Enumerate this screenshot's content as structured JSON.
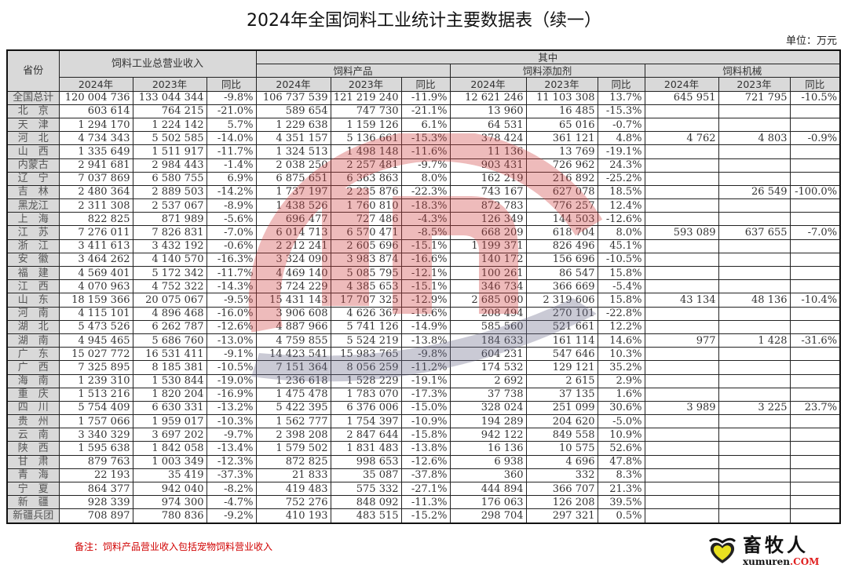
{
  "title": "2024年全国饲料工业统计主要数据表（续一）",
  "unit": "单位：万元",
  "headers": {
    "province": "省份",
    "total": "饲料工业总营业收入",
    "of_which": "其中",
    "feed_products": "饲料产品",
    "feed_additives": "饲料添加剂",
    "feed_machinery": "饲料机械",
    "y2024": "2024年",
    "y2023": "2023年",
    "yoy": "同比"
  },
  "rows": [
    [
      "全国总计",
      "120 004 736",
      "133 044 344",
      "-9.8%",
      "106 737 539",
      "121 219 240",
      "-11.9%",
      "12 621 246",
      "11 103 308",
      "13.7%",
      "645 951",
      "721 795",
      "-10.5%"
    ],
    [
      "北　京",
      "603 614",
      "764 215",
      "-21.0%",
      "589 654",
      "747 730",
      "-21.1%",
      "13 960",
      "16 485",
      "-15.3%",
      "",
      "",
      ""
    ],
    [
      "天　津",
      "1 294 170",
      "1 224 142",
      "5.7%",
      "1 229 638",
      "1 159 126",
      "6.1%",
      "64 531",
      "65 016",
      "-0.7%",
      "",
      "",
      ""
    ],
    [
      "河　北",
      "4 734 343",
      "5 502 585",
      "-14.0%",
      "4 351 157",
      "5 136 661",
      "-15.3%",
      "378 424",
      "361 121",
      "4.8%",
      "4 762",
      "4 803",
      "-0.9%"
    ],
    [
      "山　西",
      "1 335 649",
      "1 511 917",
      "-11.7%",
      "1 324 513",
      "1 498 148",
      "-11.6%",
      "11 136",
      "13 769",
      "-19.1%",
      "",
      "",
      ""
    ],
    [
      "内蒙古",
      "2 941 681",
      "2 984 443",
      "-1.4%",
      "2 038 250",
      "2 257 481",
      "-9.7%",
      "903 431",
      "726 962",
      "24.3%",
      "",
      "",
      ""
    ],
    [
      "辽　宁",
      "7 037 869",
      "6 580 755",
      "6.9%",
      "6 875 651",
      "6 363 863",
      "8.0%",
      "162 219",
      "216 892",
      "-25.2%",
      "",
      "",
      ""
    ],
    [
      "吉　林",
      "2 480 364",
      "2 889 503",
      "-14.2%",
      "1 737 197",
      "2 235 876",
      "-22.3%",
      "743 167",
      "627 078",
      "18.5%",
      "",
      "26 549",
      "-100.0%"
    ],
    [
      "黑龙江",
      "2 311 308",
      "2 537 067",
      "-8.9%",
      "1 438 526",
      "1 760 810",
      "-18.3%",
      "872 783",
      "776 257",
      "12.4%",
      "",
      "",
      ""
    ],
    [
      "上　海",
      "822 825",
      "871 989",
      "-5.6%",
      "696 477",
      "727 486",
      "-4.3%",
      "126 349",
      "144 503",
      "-12.6%",
      "",
      "",
      ""
    ],
    [
      "江　苏",
      "7 276 011",
      "7 826 831",
      "-7.0%",
      "6 014 713",
      "6 570 471",
      "-8.5%",
      "668 209",
      "618 704",
      "8.0%",
      "593 089",
      "637 655",
      "-7.0%"
    ],
    [
      "浙　江",
      "3 411 613",
      "3 432 192",
      "-0.6%",
      "2 212 241",
      "2 605 696",
      "-15.1%",
      "1 199 371",
      "826 496",
      "45.1%",
      "",
      "",
      ""
    ],
    [
      "安　徽",
      "3 464 262",
      "4 140 570",
      "-16.3%",
      "3 324 090",
      "3 983 874",
      "-16.6%",
      "140 172",
      "156 696",
      "-10.5%",
      "",
      "",
      ""
    ],
    [
      "福　建",
      "4 569 401",
      "5 172 342",
      "-11.7%",
      "4 469 140",
      "5 085 795",
      "-12.1%",
      "100 261",
      "86 547",
      "15.8%",
      "",
      "",
      ""
    ],
    [
      "江　西",
      "4 070 963",
      "4 752 322",
      "-14.3%",
      "3 724 229",
      "4 385 653",
      "-15.1%",
      "346 734",
      "366 669",
      "-5.4%",
      "",
      "",
      ""
    ],
    [
      "山　东",
      "18 159 366",
      "20 075 067",
      "-9.5%",
      "15 431 143",
      "17 707 325",
      "-12.9%",
      "2 685 090",
      "2 319 606",
      "15.8%",
      "43 134",
      "48 136",
      "-10.4%"
    ],
    [
      "河　南",
      "4 115 101",
      "4 896 468",
      "-16.0%",
      "3 906 608",
      "4 626 367",
      "-15.6%",
      "208 494",
      "270 101",
      "-22.8%",
      "",
      "",
      ""
    ],
    [
      "湖　北",
      "5 473 526",
      "6 262 787",
      "-12.6%",
      "4 887 966",
      "5 741 126",
      "-14.9%",
      "585 560",
      "521 661",
      "12.2%",
      "",
      "",
      ""
    ],
    [
      "湖　南",
      "4 945 465",
      "5 686 760",
      "-13.0%",
      "4 759 855",
      "5 524 219",
      "-13.8%",
      "184 633",
      "161 114",
      "14.6%",
      "977",
      "1 428",
      "-31.6%"
    ],
    [
      "广　东",
      "15 027 772",
      "16 531 411",
      "-9.1%",
      "14 423 541",
      "15 983 765",
      "-9.8%",
      "604 231",
      "547 646",
      "10.3%",
      "",
      "",
      ""
    ],
    [
      "广　西",
      "7 325 895",
      "8 185 381",
      "-10.5%",
      "7 151 364",
      "8 056 259",
      "-11.2%",
      "174 532",
      "129 121",
      "35.2%",
      "",
      "",
      ""
    ],
    [
      "海　南",
      "1 239 310",
      "1 530 844",
      "-19.0%",
      "1 236 618",
      "1 528 229",
      "-19.1%",
      "2 692",
      "2 615",
      "2.9%",
      "",
      "",
      ""
    ],
    [
      "重　庆",
      "1 513 216",
      "1 820 204",
      "-16.9%",
      "1 475 478",
      "1 783 070",
      "-17.3%",
      "37 738",
      "37 135",
      "1.6%",
      "",
      "",
      ""
    ],
    [
      "四　川",
      "5 754 409",
      "6 630 331",
      "-13.2%",
      "5 422 395",
      "6 376 006",
      "-15.0%",
      "328 024",
      "251 099",
      "30.6%",
      "3 989",
      "3 225",
      "23.7%"
    ],
    [
      "贵　州",
      "1 757 066",
      "1 959 017",
      "-10.3%",
      "1 562 777",
      "1 754 397",
      "-10.9%",
      "194 289",
      "204 620",
      "-5.0%",
      "",
      "",
      ""
    ],
    [
      "云　南",
      "3 340 329",
      "3 697 202",
      "-9.7%",
      "2 398 208",
      "2 847 644",
      "-15.8%",
      "942 122",
      "849 558",
      "10.9%",
      "",
      "",
      ""
    ],
    [
      "陕　西",
      "1 595 638",
      "1 842 058",
      "-13.4%",
      "1 579 502",
      "1 831 483",
      "-13.8%",
      "16 136",
      "10 575",
      "52.6%",
      "",
      "",
      ""
    ],
    [
      "甘　肃",
      "879 763",
      "1 003 349",
      "-12.3%",
      "872 825",
      "998 653",
      "-12.6%",
      "6 938",
      "4 696",
      "47.8%",
      "",
      "",
      ""
    ],
    [
      "青　海",
      "22 193",
      "35 419",
      "-37.3%",
      "21 833",
      "35 087",
      "-37.8%",
      "360",
      "332",
      "8.3%",
      "",
      "",
      ""
    ],
    [
      "宁　夏",
      "864 377",
      "942 040",
      "-8.2%",
      "419 483",
      "575 332",
      "-27.1%",
      "444 894",
      "366 707",
      "21.3%",
      "",
      "",
      ""
    ],
    [
      "新　疆",
      "928 339",
      "974 300",
      "-4.7%",
      "752 276",
      "848 092",
      "-11.3%",
      "176 063",
      "126 208",
      "39.5%",
      "",
      "",
      ""
    ],
    [
      "新疆兵团",
      "708 897",
      "780 836",
      "-9.2%",
      "410 193",
      "483 515",
      "-15.2%",
      "298 704",
      "297 321",
      "0.5%",
      "",
      "",
      ""
    ]
  ],
  "note": "备注：饲料产品营业收入包括宠物饲料营业收入",
  "logo": {
    "name": "畜牧人",
    "url_main": "xumuren",
    "url_suffix": ".COM"
  },
  "colors": {
    "header_bg": "#d9d9d9",
    "note": "#d00000",
    "watermark_red": "#d04040",
    "watermark_gray": "#6a6a8a"
  },
  "icons": {
    "watermark": "industry-logo-watermark",
    "logo": "heart-logo-icon"
  }
}
